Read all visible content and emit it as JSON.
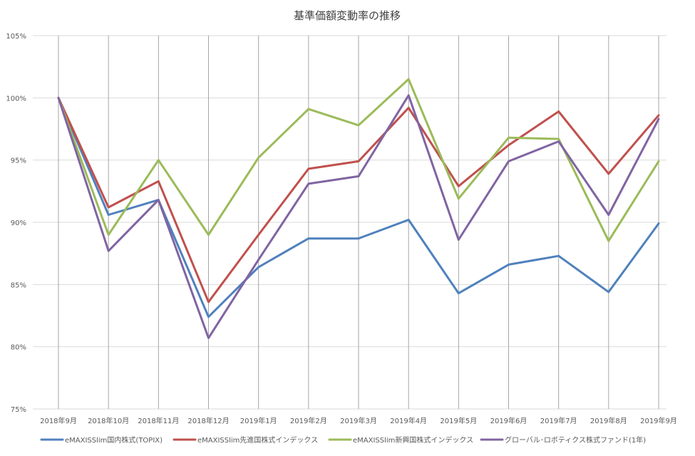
{
  "chart_data": {
    "type": "line",
    "title": "基準価額変動率の推移",
    "xlabel": "",
    "ylabel": "",
    "categories": [
      "2018年9月",
      "2018年10月",
      "2018年11月",
      "2018年12月",
      "2019年1月",
      "2019年2月",
      "2019年3月",
      "2019年4月",
      "2019年5月",
      "2019年6月",
      "2019年7月",
      "2019年8月",
      "2019年9月"
    ],
    "ylim": [
      75,
      105
    ],
    "yticks": [
      75,
      80,
      85,
      90,
      95,
      100,
      105
    ],
    "ytick_labels": [
      "75%",
      "80%",
      "85%",
      "90%",
      "95%",
      "100%",
      "105%"
    ],
    "grid": "horizontal and vertical",
    "legend_position": "bottom",
    "series": [
      {
        "name": "eMAXISSlim国内株式(TOPIX)",
        "color": "#4F81BD",
        "values": [
          100.0,
          90.6,
          91.8,
          82.4,
          86.4,
          88.7,
          88.7,
          90.2,
          84.3,
          86.6,
          87.3,
          84.4,
          89.9
        ]
      },
      {
        "name": "eMAXISSlim先進国株式インデックス",
        "color": "#C0504D",
        "values": [
          100.0,
          91.2,
          93.3,
          83.6,
          89.0,
          94.3,
          94.9,
          99.2,
          92.9,
          96.2,
          98.9,
          93.9,
          98.6
        ]
      },
      {
        "name": "eMAXISSlim新興国株式インデックス",
        "color": "#9BBB59",
        "values": [
          100.0,
          89.0,
          95.0,
          89.0,
          95.2,
          99.1,
          97.8,
          101.5,
          91.9,
          96.8,
          96.7,
          88.5,
          94.9
        ]
      },
      {
        "name": "グローバル･ロボティクス株式ファンド(1年)",
        "color": "#8064A2",
        "values": [
          100.0,
          87.7,
          91.8,
          80.7,
          87.0,
          93.1,
          93.7,
          100.2,
          88.6,
          94.9,
          96.5,
          90.6,
          98.3
        ]
      }
    ]
  }
}
